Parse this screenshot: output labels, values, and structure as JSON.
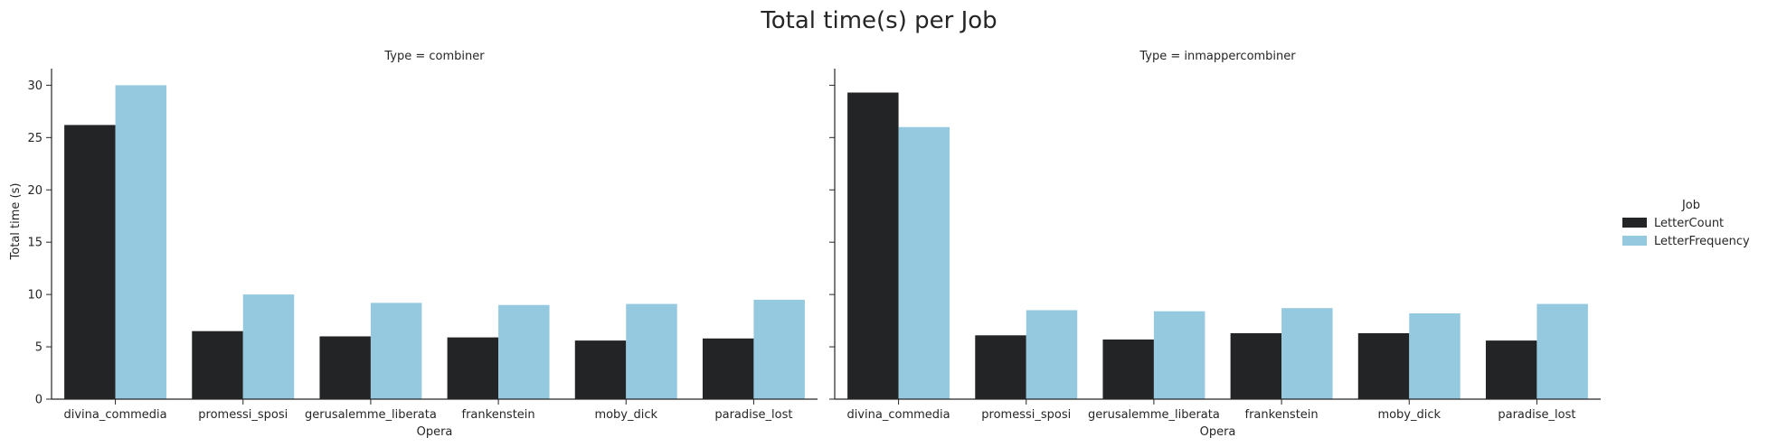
{
  "chart_data": {
    "type": "bar",
    "title": "Total time(s) per Job",
    "ylabel": "Total time (s)",
    "xlabel": "Opera",
    "ylim": [
      0,
      31.5
    ],
    "yticks": [
      0,
      5,
      10,
      15,
      20,
      25,
      30
    ],
    "categories": [
      "divina_commedia",
      "promessi_sposi",
      "gerusalemme_liberata",
      "frankenstein",
      "moby_dick",
      "paradise_lost"
    ],
    "legend": {
      "title": "Job",
      "position": "right"
    },
    "panels": [
      {
        "title": "Type = combiner",
        "series": [
          {
            "name": "LetterCount",
            "color": "#232425",
            "values": [
              26.2,
              6.5,
              6.0,
              5.9,
              5.6,
              5.8
            ]
          },
          {
            "name": "LetterFrequency",
            "color": "#95c9df",
            "values": [
              30.0,
              10.0,
              9.2,
              9.0,
              9.1,
              9.5
            ]
          }
        ]
      },
      {
        "title": "Type = inmappercombiner",
        "series": [
          {
            "name": "LetterCount",
            "color": "#232425",
            "values": [
              29.3,
              6.1,
              5.7,
              6.3,
              6.3,
              5.6
            ]
          },
          {
            "name": "LetterFrequency",
            "color": "#95c9df",
            "values": [
              26.0,
              8.5,
              8.4,
              8.7,
              8.2,
              9.1
            ]
          }
        ]
      }
    ]
  }
}
